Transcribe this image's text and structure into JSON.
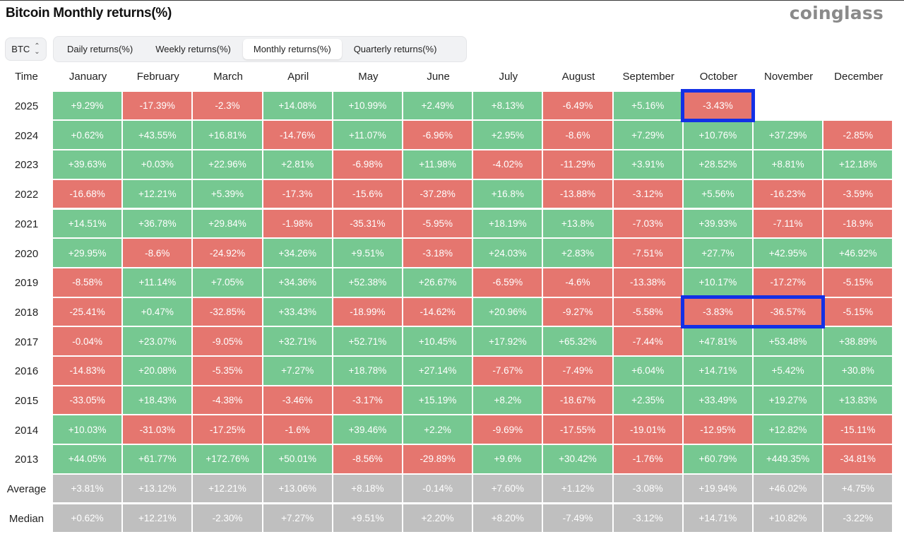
{
  "header": {
    "title": "Bitcoin Monthly returns(%)",
    "brand": "coinglass"
  },
  "controls": {
    "asset": "BTC",
    "tabs": [
      {
        "label": "Daily returns(%)",
        "active": false
      },
      {
        "label": "Weekly returns(%)",
        "active": false
      },
      {
        "label": "Monthly returns(%)",
        "active": true
      },
      {
        "label": "Quarterly returns(%)",
        "active": false
      }
    ]
  },
  "colors": {
    "positive": "#76c891",
    "negative": "#e5766f",
    "summary": "#bfbfbf",
    "highlight": "#1330e6"
  },
  "chart_data": {
    "type": "table",
    "title": "Bitcoin Monthly returns(%)",
    "row_header": "Time",
    "columns": [
      "January",
      "February",
      "March",
      "April",
      "May",
      "June",
      "July",
      "August",
      "September",
      "October",
      "November",
      "December"
    ],
    "rows": [
      {
        "label": "2025",
        "values": [
          "+9.29%",
          "-17.39%",
          "-2.3%",
          "+14.08%",
          "+10.99%",
          "+2.49%",
          "+8.13%",
          "-6.49%",
          "+5.16%",
          "-3.43%",
          "",
          ""
        ]
      },
      {
        "label": "2024",
        "values": [
          "+0.62%",
          "+43.55%",
          "+16.81%",
          "-14.76%",
          "+11.07%",
          "-6.96%",
          "+2.95%",
          "-8.6%",
          "+7.29%",
          "+10.76%",
          "+37.29%",
          "-2.85%"
        ]
      },
      {
        "label": "2023",
        "values": [
          "+39.63%",
          "+0.03%",
          "+22.96%",
          "+2.81%",
          "-6.98%",
          "+11.98%",
          "-4.02%",
          "-11.29%",
          "+3.91%",
          "+28.52%",
          "+8.81%",
          "+12.18%"
        ]
      },
      {
        "label": "2022",
        "values": [
          "-16.68%",
          "+12.21%",
          "+5.39%",
          "-17.3%",
          "-15.6%",
          "-37.28%",
          "+16.8%",
          "-13.88%",
          "-3.12%",
          "+5.56%",
          "-16.23%",
          "-3.59%"
        ]
      },
      {
        "label": "2021",
        "values": [
          "+14.51%",
          "+36.78%",
          "+29.84%",
          "-1.98%",
          "-35.31%",
          "-5.95%",
          "+18.19%",
          "+13.8%",
          "-7.03%",
          "+39.93%",
          "-7.11%",
          "-18.9%"
        ]
      },
      {
        "label": "2020",
        "values": [
          "+29.95%",
          "-8.6%",
          "-24.92%",
          "+34.26%",
          "+9.51%",
          "-3.18%",
          "+24.03%",
          "+2.83%",
          "-7.51%",
          "+27.7%",
          "+42.95%",
          "+46.92%"
        ]
      },
      {
        "label": "2019",
        "values": [
          "-8.58%",
          "+11.14%",
          "+7.05%",
          "+34.36%",
          "+52.38%",
          "+26.67%",
          "-6.59%",
          "-4.6%",
          "-13.38%",
          "+10.17%",
          "-17.27%",
          "-5.15%"
        ]
      },
      {
        "label": "2018",
        "values": [
          "-25.41%",
          "+0.47%",
          "-32.85%",
          "+33.43%",
          "-18.99%",
          "-14.62%",
          "+20.96%",
          "-9.27%",
          "-5.58%",
          "-3.83%",
          "-36.57%",
          "-5.15%"
        ]
      },
      {
        "label": "2017",
        "values": [
          "-0.04%",
          "+23.07%",
          "-9.05%",
          "+32.71%",
          "+52.71%",
          "+10.45%",
          "+17.92%",
          "+65.32%",
          "-7.44%",
          "+47.81%",
          "+53.48%",
          "+38.89%"
        ]
      },
      {
        "label": "2016",
        "values": [
          "-14.83%",
          "+20.08%",
          "-5.35%",
          "+7.27%",
          "+18.78%",
          "+27.14%",
          "-7.67%",
          "-7.49%",
          "+6.04%",
          "+14.71%",
          "+5.42%",
          "+30.8%"
        ]
      },
      {
        "label": "2015",
        "values": [
          "-33.05%",
          "+18.43%",
          "-4.38%",
          "-3.46%",
          "-3.17%",
          "+15.19%",
          "+8.2%",
          "-18.67%",
          "+2.35%",
          "+33.49%",
          "+19.27%",
          "+13.83%"
        ]
      },
      {
        "label": "2014",
        "values": [
          "+10.03%",
          "-31.03%",
          "-17.25%",
          "-1.6%",
          "+39.46%",
          "+2.2%",
          "-9.69%",
          "-17.55%",
          "-19.01%",
          "-12.95%",
          "+12.82%",
          "-15.11%"
        ]
      },
      {
        "label": "2013",
        "values": [
          "+44.05%",
          "+61.77%",
          "+172.76%",
          "+50.01%",
          "-8.56%",
          "-29.89%",
          "+9.6%",
          "+30.42%",
          "-1.76%",
          "+60.79%",
          "+449.35%",
          "-34.81%"
        ]
      }
    ],
    "summary_rows": [
      {
        "label": "Average",
        "values": [
          "+3.81%",
          "+13.12%",
          "+12.21%",
          "+13.06%",
          "+8.18%",
          "-0.14%",
          "+7.60%",
          "+1.12%",
          "-3.08%",
          "+19.94%",
          "+46.02%",
          "+4.75%"
        ]
      },
      {
        "label": "Median",
        "values": [
          "+0.62%",
          "+12.21%",
          "-2.30%",
          "+7.27%",
          "+9.51%",
          "+2.20%",
          "+8.20%",
          "-7.49%",
          "-3.12%",
          "+14.71%",
          "+10.82%",
          "-3.22%"
        ]
      }
    ],
    "highlights": [
      {
        "row": "2025",
        "columns": [
          "October"
        ]
      },
      {
        "row": "2018",
        "columns": [
          "October",
          "November"
        ]
      }
    ]
  }
}
